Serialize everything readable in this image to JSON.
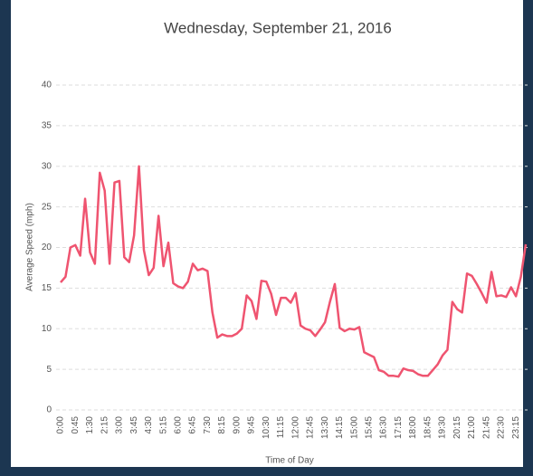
{
  "chart_data": {
    "type": "line",
    "title": "Wednesday, September 21, 2016",
    "x_label": "Time of Day",
    "y_label": "Average Speed (mph)",
    "categories": [
      "0:00",
      null,
      null,
      "0:45",
      null,
      null,
      "1:30",
      null,
      null,
      "2:15",
      null,
      null,
      "3:00",
      null,
      null,
      "3:45",
      null,
      null,
      "4:30",
      null,
      null,
      "5:15",
      null,
      null,
      "6:00",
      null,
      null,
      "6:45",
      null,
      null,
      "7:30",
      null,
      null,
      "8:15",
      null,
      null,
      "9:00",
      null,
      null,
      "9:45",
      null,
      null,
      "10:30",
      null,
      null,
      "11:15",
      null,
      null,
      "12:00",
      null,
      null,
      "12:45",
      null,
      null,
      "13:30",
      null,
      null,
      "14:15",
      null,
      null,
      "15:00",
      null,
      null,
      "15:45",
      null,
      null,
      "16:30",
      null,
      null,
      "17:15",
      null,
      null,
      "18:00",
      null,
      null,
      "18:45",
      null,
      null,
      "19:30",
      null,
      null,
      "20:15",
      null,
      null,
      "21:00",
      null,
      null,
      "21:45",
      null,
      null,
      "22:30",
      null,
      null,
      "23:15",
      null,
      null
    ],
    "values": [
      15.7,
      16.4,
      20,
      20.3,
      19,
      26,
      19.4,
      18,
      29.2,
      27,
      18,
      28,
      28.2,
      18.8,
      18.2,
      21.5,
      30,
      19.7,
      16.6,
      17.5,
      23.9,
      17.7,
      20.6,
      15.6,
      15.2,
      15,
      15.8,
      18,
      17.2,
      17.4,
      17.1,
      12,
      8.9,
      9.3,
      9.1,
      9.1,
      9.4,
      10,
      14.1,
      13.4,
      11.2,
      15.9,
      15.8,
      14.3,
      11.7,
      13.8,
      13.8,
      13.2,
      14.4,
      10.4,
      10,
      9.8,
      9.1,
      9.9,
      10.8,
      13.3,
      15.5,
      10.1,
      9.7,
      10,
      9.9,
      10.2,
      7.1,
      6.8,
      6.5,
      4.9,
      4.7,
      4.2,
      4.2,
      4.1,
      5.1,
      4.9,
      4.8,
      4.4,
      4.2,
      4.2,
      4.9,
      5.6,
      6.7,
      7.4,
      13.3,
      12.4,
      12,
      16.8,
      16.5,
      15.5,
      14.4,
      13.2,
      17,
      14,
      14.1,
      13.9,
      15.1,
      14,
      16.4,
      20.4
    ],
    "color": "#ef5470",
    "ylim": [
      0,
      40
    ],
    "yticks": [
      0,
      5,
      10,
      15,
      20,
      25,
      30,
      35,
      40
    ],
    "grid": true
  }
}
